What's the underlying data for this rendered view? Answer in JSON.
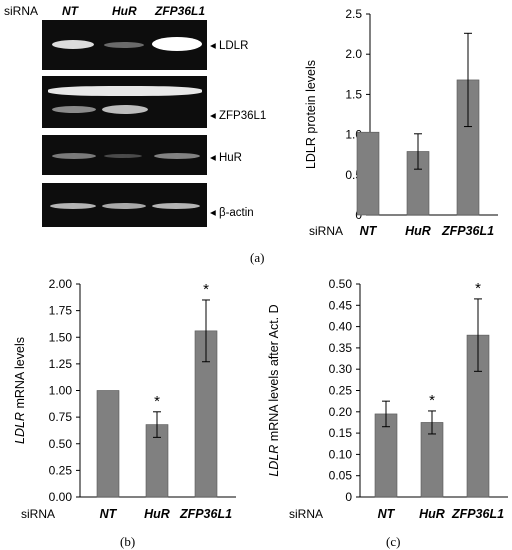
{
  "blot": {
    "sirna_label": "siRNA",
    "lanes": [
      "NT",
      "HuR",
      "ZFP36L1"
    ],
    "markers": [
      {
        "label": "LDLR"
      },
      {
        "label": "ZFP36L1"
      },
      {
        "label": "HuR"
      },
      {
        "label": "β-actin"
      }
    ],
    "band_intensity": [
      {
        "marker": "LDLR",
        "lanes": [
          0.75,
          0.35,
          1.0
        ]
      },
      {
        "marker": "ZFP36L1",
        "upper": [
          0.9,
          0.9,
          0.9
        ],
        "lower": [
          0.45,
          0.75,
          0.0
        ]
      },
      {
        "marker": "HuR",
        "lanes": [
          0.4,
          0.2,
          0.45
        ]
      },
      {
        "marker": "β-actin",
        "lanes": [
          0.65,
          0.6,
          0.65
        ]
      }
    ]
  },
  "panel_labels": {
    "a": "(a)",
    "b": "(b)",
    "c": "(c)"
  },
  "chart_data": [
    {
      "id": "a",
      "type": "bar",
      "categories": [
        "NT",
        "HuR",
        "ZFP36L1"
      ],
      "values": [
        1.03,
        0.79,
        1.68
      ],
      "errors": [
        0,
        0.22,
        0.58
      ],
      "significance": [
        "",
        "",
        ""
      ],
      "ylabel": "LDLR protein levels",
      "ylabel_italic": "",
      "ylim": [
        0,
        2.5
      ],
      "yticks": [
        "0",
        "0.5",
        "1.0",
        "1.5",
        "2.0",
        "2.5"
      ],
      "xprefix": "siRNA",
      "bar_color": "#808080"
    },
    {
      "id": "b",
      "type": "bar",
      "categories": [
        "NT",
        "HuR",
        "ZFP36L1"
      ],
      "values": [
        1.0,
        0.68,
        1.56
      ],
      "errors": [
        0,
        0.12,
        0.29
      ],
      "significance": [
        "",
        "*",
        "*"
      ],
      "ylabel": " mRNA levels",
      "ylabel_italic": "LDLR",
      "ylim": [
        0,
        2.0
      ],
      "yticks": [
        "0.00",
        "0.25",
        "0.50",
        "0.75",
        "1.00",
        "1.25",
        "1.50",
        "1.75",
        "2.00"
      ],
      "xprefix": "siRNA",
      "bar_color": "#808080"
    },
    {
      "id": "c",
      "type": "bar",
      "categories": [
        "NT",
        "HuR",
        "ZFP36L1"
      ],
      "values": [
        0.195,
        0.175,
        0.38
      ],
      "errors": [
        0.03,
        0.027,
        0.085
      ],
      "significance": [
        "",
        "*",
        "*"
      ],
      "ylabel": " mRNA levels after Act. D",
      "ylabel_italic": "LDLR",
      "ylim": [
        0,
        0.5
      ],
      "yticks": [
        "0",
        "0.05",
        "0.10",
        "0.15",
        "0.20",
        "0.25",
        "0.30",
        "0.35",
        "0.40",
        "0.45",
        "0.50"
      ],
      "xprefix": "siRNA",
      "bar_color": "#808080"
    }
  ]
}
